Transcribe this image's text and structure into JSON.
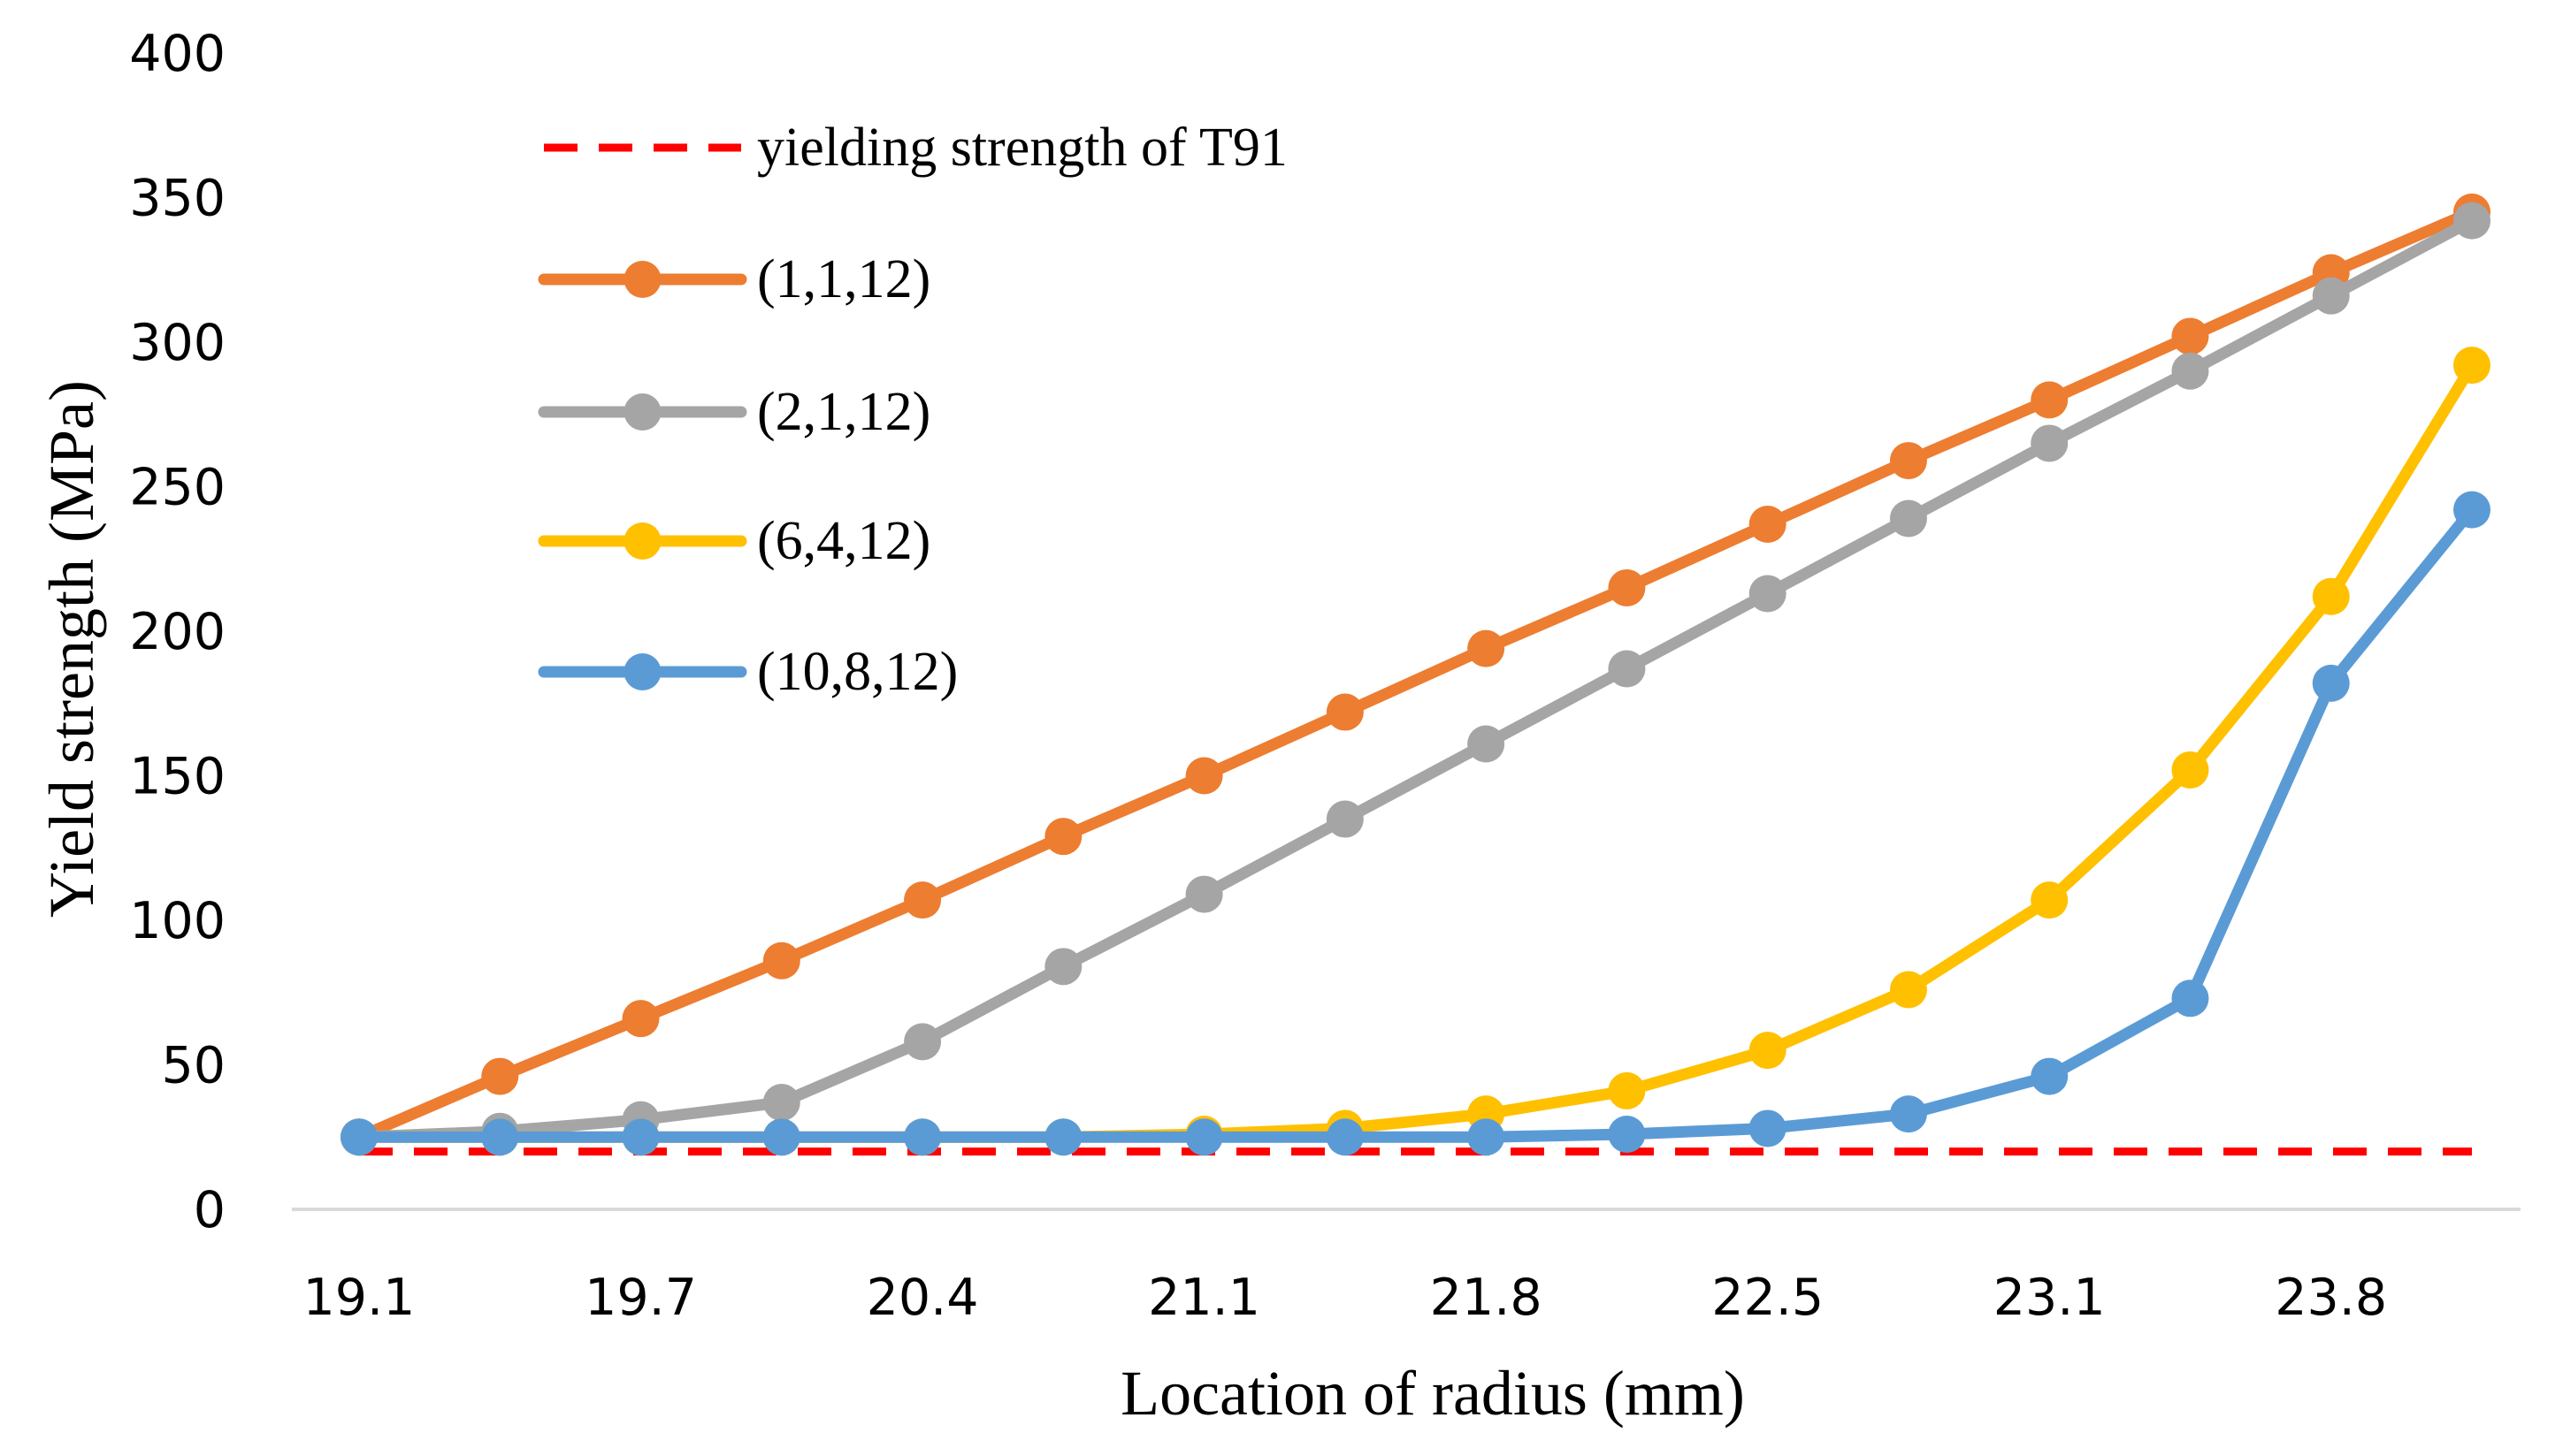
{
  "chart_data": {
    "type": "line",
    "title": "",
    "xlabel": "Location of radius (mm)",
    "ylabel": "Yield strength (MPa)",
    "ylim": [
      0,
      400
    ],
    "y_ticks": [
      0,
      50,
      100,
      150,
      200,
      250,
      300,
      350,
      400
    ],
    "x_points": [
      19.1,
      19.45,
      19.7,
      20.05,
      20.4,
      20.75,
      21.1,
      21.45,
      21.8,
      22.15,
      22.5,
      22.8,
      23.1,
      23.45,
      23.8,
      24.15
    ],
    "x_tick_labels": [
      "19.1",
      "19.7",
      "20.4",
      "21.1",
      "21.8",
      "22.5",
      "23.1",
      "23.8"
    ],
    "x_tick_indices": [
      0,
      2,
      4,
      6,
      8,
      10,
      12,
      14
    ],
    "legend_position": "top-left",
    "reference_line": {
      "name": "yielding strength of T91",
      "value": 20,
      "color": "#FF0000",
      "style": "dashed"
    },
    "series": [
      {
        "name": "(1,1,12)",
        "color": "#ED7D31",
        "values": [
          25,
          46,
          66,
          86,
          107,
          129,
          150,
          172,
          194,
          215,
          237,
          259,
          280,
          302,
          324,
          345
        ]
      },
      {
        "name": "(2,1,12)",
        "color": "#A5A5A5",
        "values": [
          25,
          27,
          31,
          37,
          58,
          84,
          109,
          135,
          161,
          187,
          213,
          239,
          265,
          290,
          316,
          342
        ]
      },
      {
        "name": "(6,4,12)",
        "color": "#FFC000",
        "values": [
          25,
          25,
          25,
          25,
          25,
          25,
          26,
          28,
          33,
          41,
          55,
          76,
          107,
          152,
          212,
          292
        ]
      },
      {
        "name": "(10,8,12)",
        "color": "#5B9BD5",
        "values": [
          25,
          25,
          25,
          25,
          25,
          25,
          25,
          25,
          25,
          26,
          28,
          33,
          46,
          73,
          182,
          242
        ]
      }
    ]
  }
}
